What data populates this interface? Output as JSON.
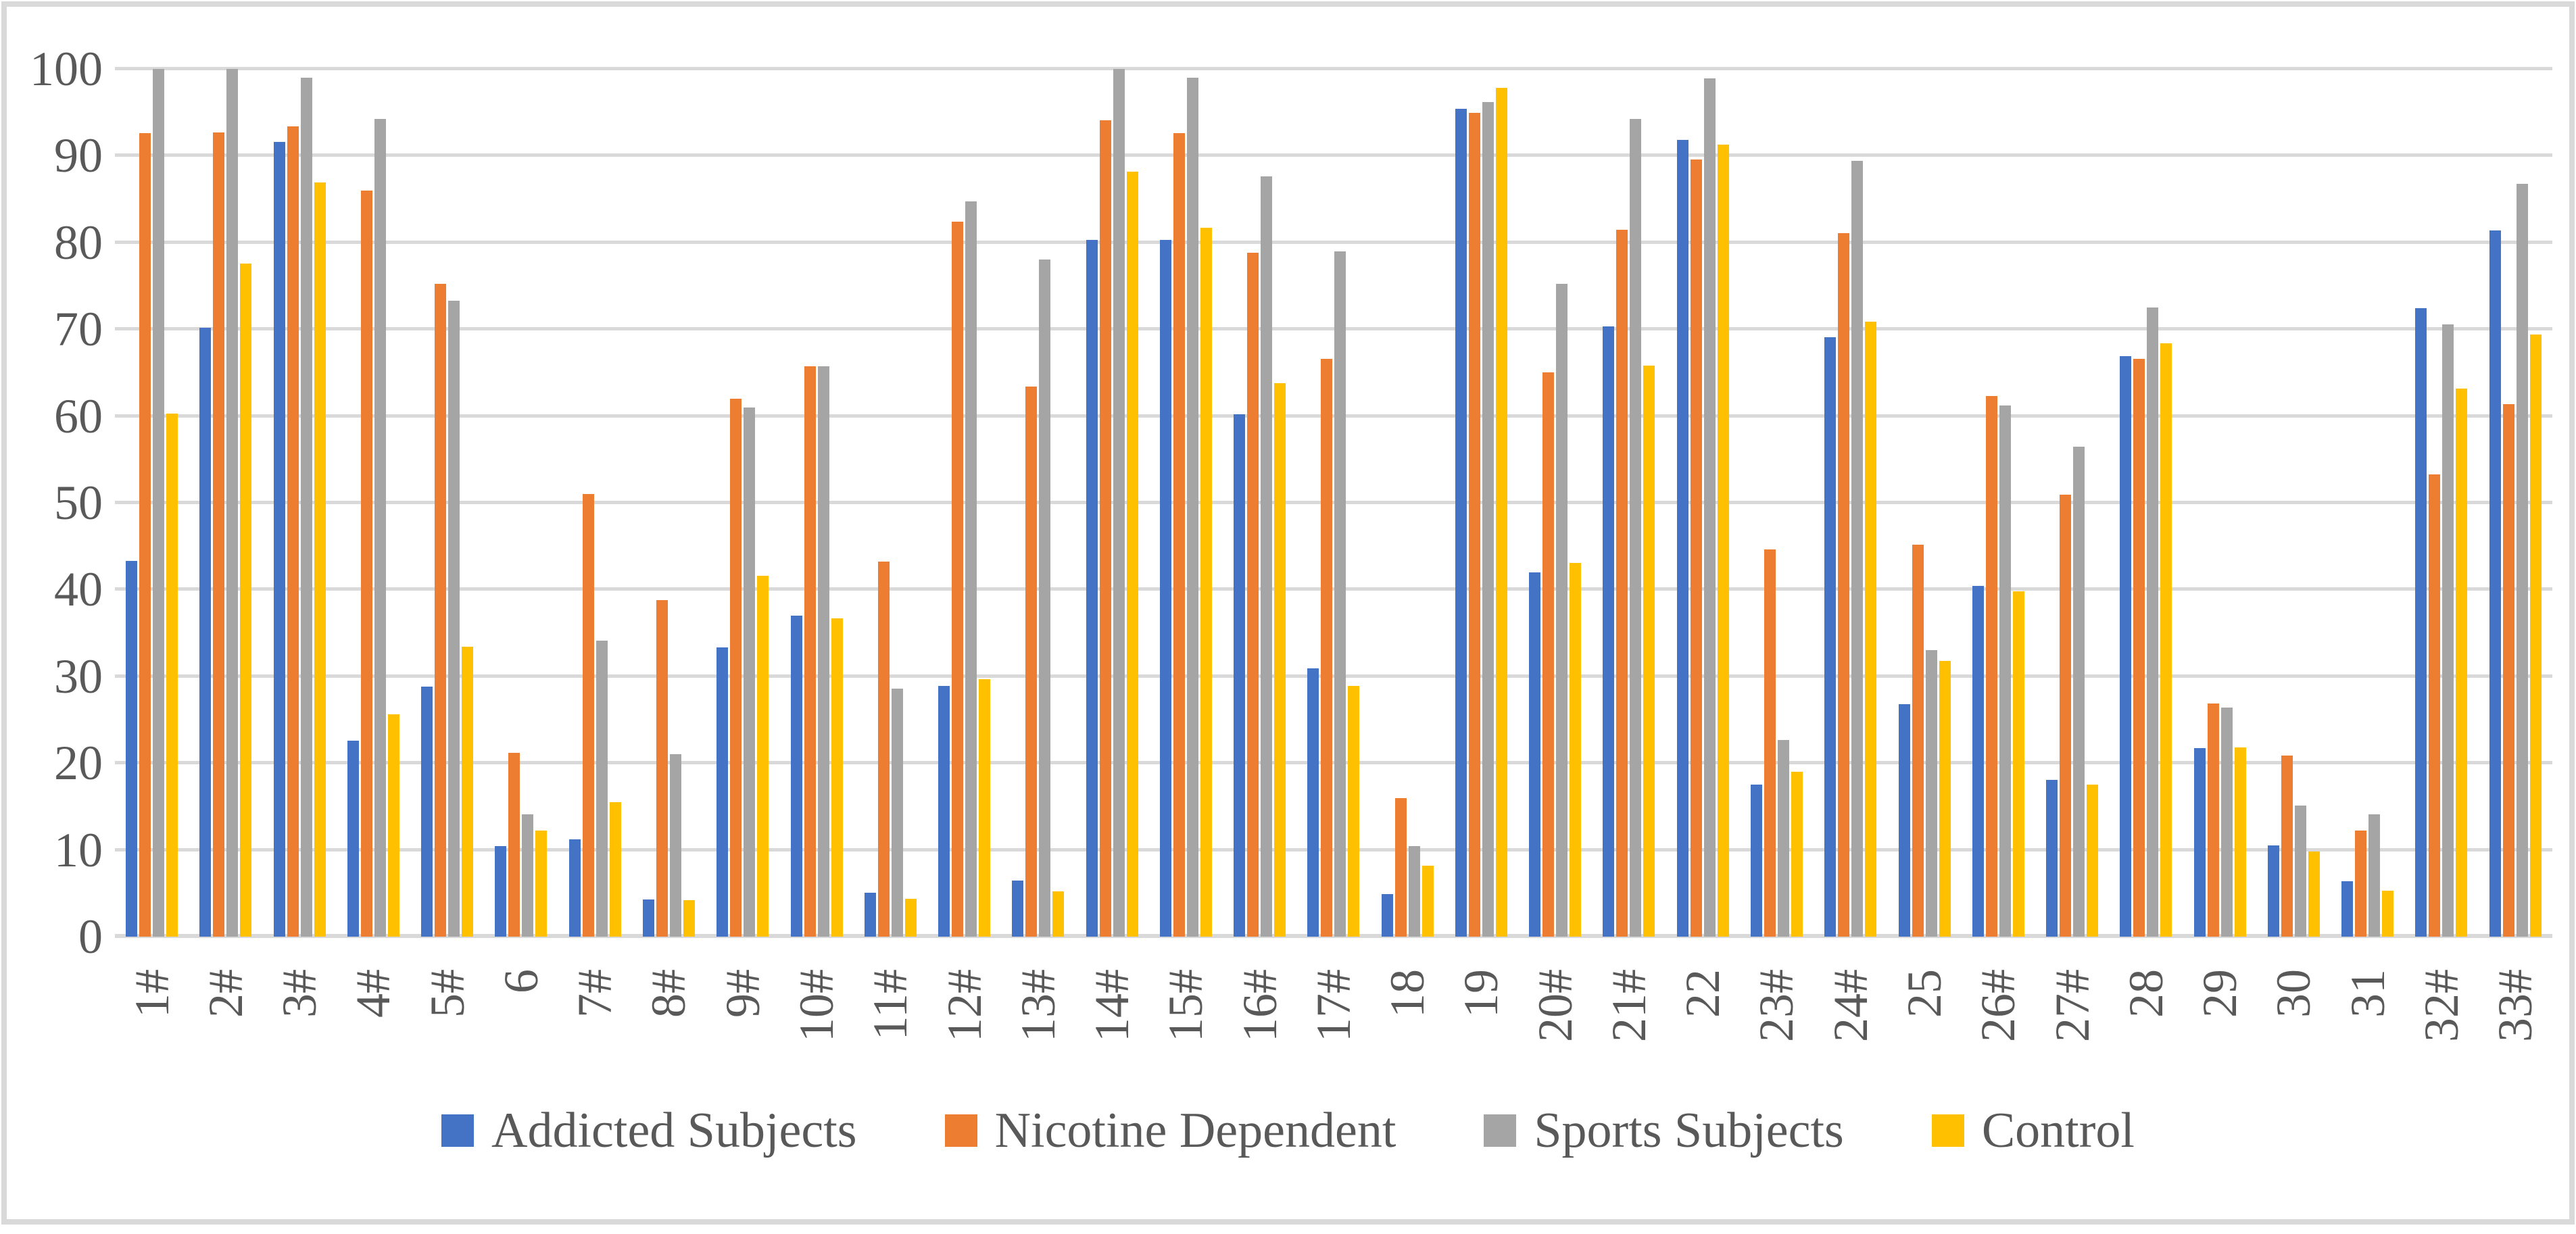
{
  "figure": {
    "background": "#FFFFFF",
    "frame_border_color": "#D9D9D9",
    "axis_text_color": "#595959",
    "gridline_color": "#D9D9D9"
  },
  "chart_data": {
    "type": "bar",
    "title": "",
    "xlabel": "",
    "ylabel": "",
    "ylim": [
      0,
      100
    ],
    "y_ticks": [
      0,
      10,
      20,
      30,
      40,
      50,
      60,
      70,
      80,
      90,
      100
    ],
    "grid": "horizontal",
    "legend_position": "bottom",
    "x_tick_rotation": -90,
    "categories": [
      "1#",
      "2#",
      "3#",
      "4#",
      "5#",
      "6",
      "7#",
      "8#",
      "9#",
      "10#",
      "11#",
      "12#",
      "13#",
      "14#",
      "15#",
      "16#",
      "17#",
      "18",
      "19",
      "20#",
      "21#",
      "22",
      "23#",
      "24#",
      "25",
      "26#",
      "27#",
      "28",
      "29",
      "30",
      "31",
      "32#",
      "33#"
    ],
    "series": [
      {
        "name": "Addicted Subjects",
        "color": "#4472C4",
        "values": [
          43.3,
          70.2,
          91.6,
          22.6,
          28.8,
          10.4,
          11.2,
          4.3,
          33.3,
          37.0,
          5.1,
          28.9,
          6.5,
          80.3,
          80.3,
          60.2,
          30.9,
          4.9,
          95.4,
          42.0,
          70.3,
          91.8,
          17.5,
          69.1,
          26.8,
          40.4,
          18.1,
          66.9,
          21.7,
          10.5,
          6.4,
          72.4,
          81.4
        ]
      },
      {
        "name": "Nicotine Dependent",
        "color": "#ED7D31",
        "values": [
          92.6,
          92.7,
          93.4,
          86.0,
          75.2,
          21.2,
          51.0,
          38.8,
          62.0,
          65.7,
          43.2,
          82.4,
          63.4,
          94.1,
          92.6,
          78.8,
          66.6,
          16.0,
          94.9,
          65.0,
          81.5,
          89.6,
          44.6,
          81.1,
          45.2,
          62.3,
          50.9,
          66.6,
          26.9,
          20.9,
          12.2,
          53.3,
          61.4
        ]
      },
      {
        "name": "Sports Subjects",
        "color": "#A5A5A5",
        "values": [
          100,
          100,
          99.0,
          94.2,
          73.3,
          14.1,
          34.1,
          21.0,
          61.0,
          65.7,
          28.6,
          84.7,
          78.0,
          100,
          99.0,
          87.6,
          79.0,
          10.4,
          96.2,
          75.2,
          94.2,
          98.9,
          22.7,
          89.4,
          33.0,
          61.2,
          56.5,
          72.5,
          26.4,
          15.1,
          14.1,
          70.6,
          86.8
        ]
      },
      {
        "name": "Control",
        "color": "#FFC000",
        "values": [
          60.3,
          77.6,
          86.9,
          25.6,
          33.4,
          12.2,
          15.5,
          4.2,
          41.6,
          36.7,
          4.4,
          29.7,
          5.2,
          88.2,
          81.7,
          63.8,
          28.9,
          8.2,
          97.8,
          43.1,
          65.8,
          91.3,
          19.0,
          70.9,
          31.8,
          39.8,
          17.5,
          68.4,
          21.8,
          9.8,
          5.3,
          63.2,
          69.4
        ]
      }
    ]
  }
}
